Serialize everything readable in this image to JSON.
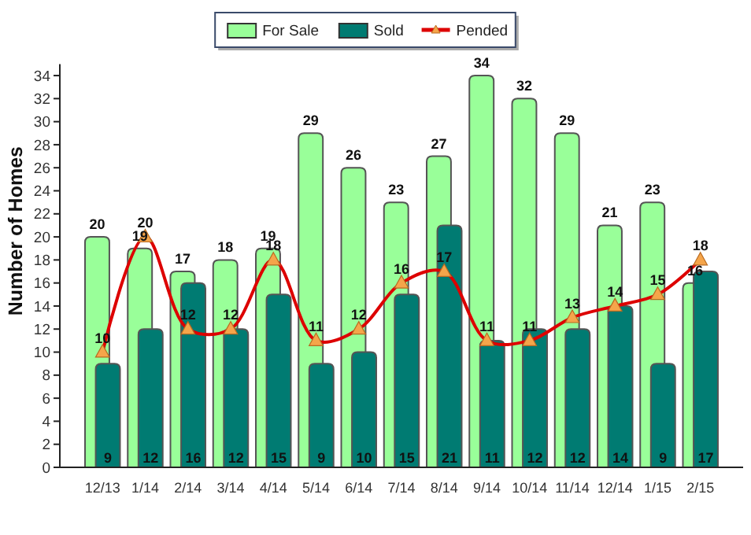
{
  "chart_data": {
    "type": "bar",
    "ylabel": "Number of Homes",
    "categories": [
      "12/13",
      "1/14",
      "2/14",
      "3/14",
      "4/14",
      "5/14",
      "6/14",
      "7/14",
      "8/14",
      "9/14",
      "10/14",
      "11/14",
      "12/14",
      "1/15",
      "2/15"
    ],
    "series": [
      {
        "name": "For Sale",
        "color": "#99ff99",
        "values": [
          20,
          19,
          17,
          18,
          19,
          29,
          26,
          23,
          27,
          34,
          32,
          29,
          21,
          23,
          16
        ]
      },
      {
        "name": "Sold",
        "color": "#007b72",
        "values": [
          9,
          12,
          16,
          12,
          15,
          9,
          10,
          15,
          21,
          11,
          12,
          12,
          14,
          9,
          17
        ]
      },
      {
        "name": "Pended",
        "type": "line",
        "color": "#dd0000",
        "marker": "triangle",
        "values": [
          10,
          20,
          12,
          12,
          18,
          11,
          12,
          16,
          17,
          11,
          11,
          13,
          14,
          15,
          18
        ]
      }
    ],
    "ylim": [
      0,
      35
    ],
    "yticks": [
      0,
      2,
      4,
      6,
      8,
      10,
      12,
      14,
      16,
      18,
      20,
      22,
      24,
      26,
      28,
      30,
      32,
      34
    ],
    "legend": "top",
    "data_labels": true
  }
}
